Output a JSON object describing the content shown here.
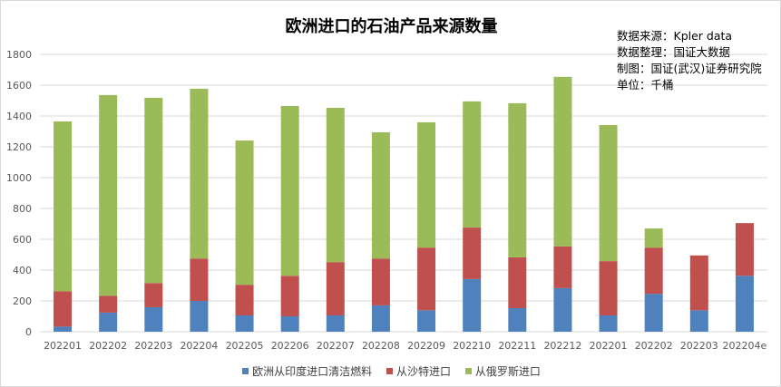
{
  "chart_data": {
    "type": "bar",
    "stacked": true,
    "title": "欧洲进口的石油产品来源数量",
    "xlabel": "",
    "ylabel": "",
    "ylim": [
      0,
      1800
    ],
    "yticks": [
      0,
      200,
      400,
      600,
      800,
      1000,
      1200,
      1400,
      1600,
      1800
    ],
    "grid": true,
    "legend_position": "bottom",
    "categories": [
      "202201",
      "202202",
      "202203",
      "202204",
      "202205",
      "202206",
      "202207",
      "202208",
      "202209",
      "202210",
      "202211",
      "202212",
      "202201",
      "202202",
      "202203",
      "202204e"
    ],
    "series": [
      {
        "name": "欧洲从印度进口清洁燃料",
        "color": "#4f81bd",
        "values": [
          33,
          124,
          159,
          200,
          106,
          100,
          106,
          171,
          139,
          342,
          153,
          283,
          106,
          246,
          139,
          363
        ]
      },
      {
        "name": "从沙特进口",
        "color": "#c0504d",
        "values": [
          230,
          110,
          157,
          275,
          199,
          263,
          346,
          304,
          407,
          334,
          330,
          271,
          352,
          300,
          356,
          342
        ]
      },
      {
        "name": "从俄罗斯进口",
        "color": "#9bbb59",
        "values": [
          1102,
          1302,
          1202,
          1102,
          936,
          1102,
          1001,
          819,
          813,
          819,
          1000,
          1100,
          883,
          124,
          0,
          0
        ]
      }
    ],
    "notes": [
      "数据来源：Kpler data",
      "数据整理：国证大数据",
      "制图：国证(武汉)证券研究院",
      "单位：千桶"
    ]
  }
}
